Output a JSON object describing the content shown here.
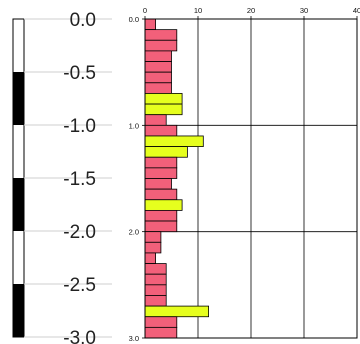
{
  "chart_data": [
    {
      "type": "strip",
      "ylabel_ticks": [
        "0.0",
        "-0.5",
        "-1.0",
        "-1.5",
        "-2.0",
        "-2.5",
        "-3.0"
      ],
      "y": [
        0.0,
        -0.5,
        -1.0,
        -1.5,
        -2.0,
        -2.5,
        -3.0
      ],
      "ylim": [
        -3.0,
        0.0
      ],
      "bands": [
        {
          "from": 0.0,
          "to": -0.5,
          "fill": "white"
        },
        {
          "from": -0.5,
          "to": -1.0,
          "fill": "black"
        },
        {
          "from": -1.0,
          "to": -1.5,
          "fill": "white"
        },
        {
          "from": -1.5,
          "to": -2.0,
          "fill": "black"
        },
        {
          "from": -2.0,
          "to": -2.5,
          "fill": "white"
        },
        {
          "from": -2.5,
          "to": -3.0,
          "fill": "black"
        }
      ]
    },
    {
      "type": "bar",
      "orientation": "horizontal",
      "x_ticks": [
        "0",
        "10",
        "20",
        "30",
        "40"
      ],
      "xlim": [
        0,
        40
      ],
      "y_ticks": [
        "0.0",
        "1.0",
        "2.0",
        "3.0"
      ],
      "ylim": [
        0.0,
        3.0
      ],
      "grid": true,
      "colors": {
        "normal": "#f2607a",
        "highlight": "#e6ff1e"
      },
      "bins": [
        {
          "depth": 0.0,
          "value": 2,
          "highlight": false
        },
        {
          "depth": 0.1,
          "value": 6,
          "highlight": false
        },
        {
          "depth": 0.2,
          "value": 6,
          "highlight": false
        },
        {
          "depth": 0.3,
          "value": 5,
          "highlight": false
        },
        {
          "depth": 0.4,
          "value": 5,
          "highlight": false
        },
        {
          "depth": 0.5,
          "value": 5,
          "highlight": false
        },
        {
          "depth": 0.6,
          "value": 5,
          "highlight": false
        },
        {
          "depth": 0.7,
          "value": 7,
          "highlight": true
        },
        {
          "depth": 0.8,
          "value": 7,
          "highlight": true
        },
        {
          "depth": 0.9,
          "value": 4,
          "highlight": false
        },
        {
          "depth": 1.0,
          "value": 6,
          "highlight": false
        },
        {
          "depth": 1.1,
          "value": 11,
          "highlight": true
        },
        {
          "depth": 1.2,
          "value": 8,
          "highlight": true
        },
        {
          "depth": 1.3,
          "value": 6,
          "highlight": false
        },
        {
          "depth": 1.4,
          "value": 6,
          "highlight": false
        },
        {
          "depth": 1.5,
          "value": 5,
          "highlight": false
        },
        {
          "depth": 1.6,
          "value": 6,
          "highlight": false
        },
        {
          "depth": 1.7,
          "value": 7,
          "highlight": true
        },
        {
          "depth": 1.8,
          "value": 6,
          "highlight": false
        },
        {
          "depth": 1.9,
          "value": 6,
          "highlight": false
        },
        {
          "depth": 2.0,
          "value": 3,
          "highlight": false
        },
        {
          "depth": 2.1,
          "value": 3,
          "highlight": false
        },
        {
          "depth": 2.2,
          "value": 2,
          "highlight": false
        },
        {
          "depth": 2.3,
          "value": 4,
          "highlight": false
        },
        {
          "depth": 2.4,
          "value": 4,
          "highlight": false
        },
        {
          "depth": 2.5,
          "value": 4,
          "highlight": false
        },
        {
          "depth": 2.6,
          "value": 4,
          "highlight": false
        },
        {
          "depth": 2.7,
          "value": 12,
          "highlight": true
        },
        {
          "depth": 2.8,
          "value": 6,
          "highlight": false
        },
        {
          "depth": 2.9,
          "value": 6,
          "highlight": false
        }
      ]
    }
  ]
}
